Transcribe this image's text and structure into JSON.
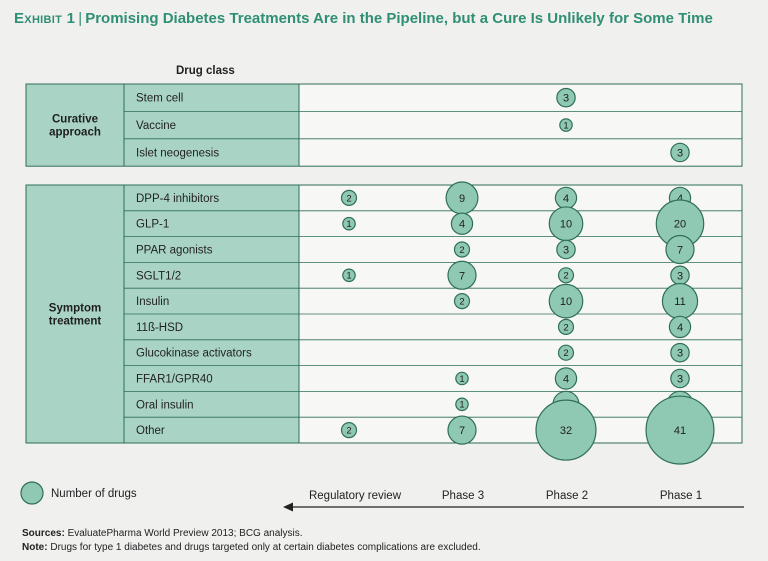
{
  "title": {
    "exhibit": "Exhibit 1",
    "separator": "|",
    "text": "Promising Diabetes Treatments Are in the Pipeline, but a Cure Is Unlikely for Some Time"
  },
  "colors": {
    "panel": "#a9d4c5",
    "bubble": "#8fc9b3",
    "bubble_stroke": "#2f6e58",
    "border": "#2f6e58",
    "title": "#2f8f74"
  },
  "chart_data": {
    "type": "bubble-table",
    "column_header": "Drug class",
    "phases": [
      "Regulatory review",
      "Phase 3",
      "Phase 2",
      "Phase 1"
    ],
    "legend": "Number of drugs",
    "groups": [
      {
        "label_lines": [
          "Curative",
          "approach"
        ],
        "rows": [
          {
            "name": "Stem cell",
            "values": [
              null,
              null,
              3,
              null
            ]
          },
          {
            "name": "Vaccine",
            "values": [
              null,
              null,
              1,
              null
            ]
          },
          {
            "name": "Islet neogenesis",
            "values": [
              null,
              null,
              null,
              3
            ]
          }
        ]
      },
      {
        "label_lines": [
          "Symptom",
          "treatment"
        ],
        "rows": [
          {
            "name": "DPP-4 inhibitors",
            "values": [
              2,
              9,
              4,
              4
            ]
          },
          {
            "name": "GLP-1",
            "values": [
              1,
              4,
              10,
              20
            ]
          },
          {
            "name": "PPAR agonists",
            "values": [
              null,
              2,
              3,
              7
            ]
          },
          {
            "name": "SGLT1/2",
            "values": [
              1,
              7,
              2,
              3
            ]
          },
          {
            "name": "Insulin",
            "values": [
              null,
              2,
              10,
              11
            ]
          },
          {
            "name": "11ß-HSD",
            "values": [
              null,
              null,
              2,
              4
            ]
          },
          {
            "name": "Glucokinase activators",
            "values": [
              null,
              null,
              2,
              3
            ]
          },
          {
            "name": "FFAR1/GPR40",
            "values": [
              null,
              1,
              4,
              3
            ]
          },
          {
            "name": "Oral insulin",
            "values": [
              null,
              1,
              6,
              6
            ]
          },
          {
            "name": "Other",
            "values": [
              2,
              7,
              32,
              41
            ]
          }
        ]
      }
    ]
  },
  "footer": {
    "sources_label": "Sources:",
    "sources_text": "EvaluatePharma World Preview 2013; BCG analysis.",
    "note_label": "Note:",
    "note_text": "Drugs for type 1 diabetes and drugs targeted only at certain diabetes complications are excluded."
  }
}
